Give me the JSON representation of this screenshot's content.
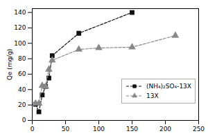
{
  "chart_data": {
    "type": "line",
    "ylabel": "Qe (mg/g)",
    "series": [
      {
        "name": "(NH₄)₂SO₄-13X",
        "color": "#111111",
        "marker": "square",
        "line_style": "dashed",
        "x": [
          5,
          10,
          15,
          20,
          25,
          30,
          70,
          150
        ],
        "values": [
          21,
          11,
          33,
          44,
          55,
          84,
          113,
          140
        ]
      },
      {
        "name": "13X",
        "color": "#888888",
        "marker": "triangle",
        "line_style": "dashed",
        "x": [
          5,
          10,
          15,
          20,
          25,
          30,
          70,
          100,
          150,
          215
        ],
        "values": [
          22,
          22,
          45,
          44,
          66,
          78,
          92,
          94,
          95,
          110
        ]
      }
    ],
    "xlim": [
      0,
      250
    ],
    "ylim": [
      0,
      145
    ],
    "xticks": [
      0,
      50,
      100,
      150,
      200,
      250
    ],
    "yticks": [
      0,
      20,
      40,
      60,
      80,
      100,
      120,
      140
    ],
    "grid": false,
    "legend": "lower right"
  }
}
